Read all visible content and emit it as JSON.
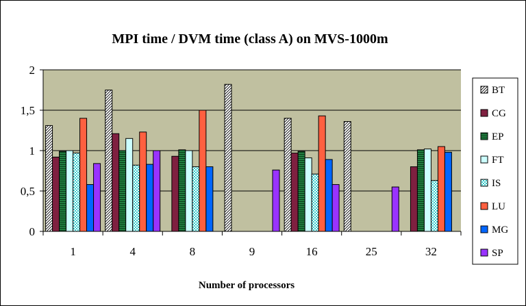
{
  "chart_data": {
    "type": "bar",
    "title": "MPI time / DVM time (class A) on MVS-1000m",
    "xlabel": "Number of processors",
    "ylabel": "",
    "categories": [
      "1",
      "4",
      "8",
      "9",
      "16",
      "25",
      "32"
    ],
    "ylim": [
      0,
      2
    ],
    "yticks": [
      "0",
      "0,5",
      "1",
      "1,5",
      "2"
    ],
    "grid": true,
    "legend_position": "right",
    "plot_background": "#c0c0a0",
    "series": [
      {
        "name": "BT",
        "color": "#ffffff",
        "pattern": "diagonal-hatch",
        "values": [
          1.31,
          1.75,
          null,
          1.82,
          1.4,
          1.36,
          null
        ]
      },
      {
        "name": "CG",
        "color": "#7f2040",
        "pattern": "solid",
        "values": [
          0.92,
          1.21,
          0.93,
          null,
          0.97,
          null,
          0.8
        ]
      },
      {
        "name": "EP",
        "color": "#208040",
        "pattern": "horizontal-lines",
        "values": [
          0.99,
          1.0,
          1.01,
          null,
          0.99,
          null,
          1.01
        ]
      },
      {
        "name": "FT",
        "color": "#ccffff",
        "pattern": "solid",
        "values": [
          1.0,
          1.15,
          1.0,
          null,
          0.91,
          null,
          1.02
        ]
      },
      {
        "name": "IS",
        "color": "#33cccc",
        "pattern": "checker",
        "values": [
          0.97,
          0.82,
          0.8,
          null,
          0.71,
          null,
          0.63
        ]
      },
      {
        "name": "LU",
        "color": "#ff6040",
        "pattern": "solid",
        "values": [
          1.4,
          1.23,
          1.5,
          null,
          1.43,
          null,
          1.05
        ]
      },
      {
        "name": "MG",
        "color": "#0066ff",
        "pattern": "solid",
        "values": [
          0.58,
          0.83,
          0.8,
          null,
          0.89,
          null,
          0.98
        ]
      },
      {
        "name": "SP",
        "color": "#9933ff",
        "pattern": "solid",
        "values": [
          0.84,
          1.0,
          null,
          0.76,
          0.58,
          0.55,
          null
        ]
      }
    ]
  }
}
